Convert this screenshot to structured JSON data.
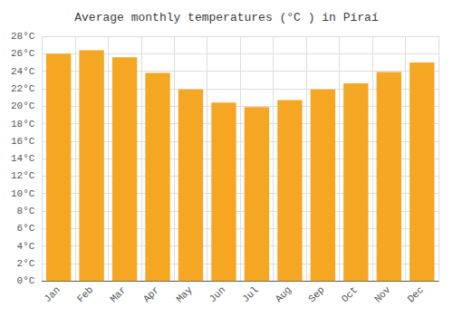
{
  "chart_data": {
    "type": "bar",
    "title": "Average monthly temperatures (°C ) in Piraí",
    "categories": [
      "Jan",
      "Feb",
      "Mar",
      "Apr",
      "May",
      "Jun",
      "Jul",
      "Aug",
      "Sep",
      "Oct",
      "Nov",
      "Dec"
    ],
    "values": [
      26.0,
      26.4,
      25.6,
      23.8,
      21.9,
      20.4,
      19.9,
      20.7,
      21.9,
      22.6,
      23.9,
      25.0
    ],
    "color": "#F5A623",
    "ylim": [
      0,
      28
    ],
    "yticks": [
      {
        "value": 0,
        "label": "0°C"
      },
      {
        "value": 2,
        "label": "2°C"
      },
      {
        "value": 4,
        "label": "4°C"
      },
      {
        "value": 6,
        "label": "6°C"
      },
      {
        "value": 8,
        "label": "8°C"
      },
      {
        "value": 10,
        "label": "10°C"
      },
      {
        "value": 12,
        "label": "12°C"
      },
      {
        "value": 14,
        "label": "14°C"
      },
      {
        "value": 16,
        "label": "16°C"
      },
      {
        "value": 18,
        "label": "18°C"
      },
      {
        "value": 20,
        "label": "20°C"
      },
      {
        "value": 22,
        "label": "22°C"
      },
      {
        "value": 24,
        "label": "24°C"
      },
      {
        "value": 26,
        "label": "26°C"
      },
      {
        "value": 28,
        "label": "28°C"
      }
    ],
    "grid": true
  }
}
